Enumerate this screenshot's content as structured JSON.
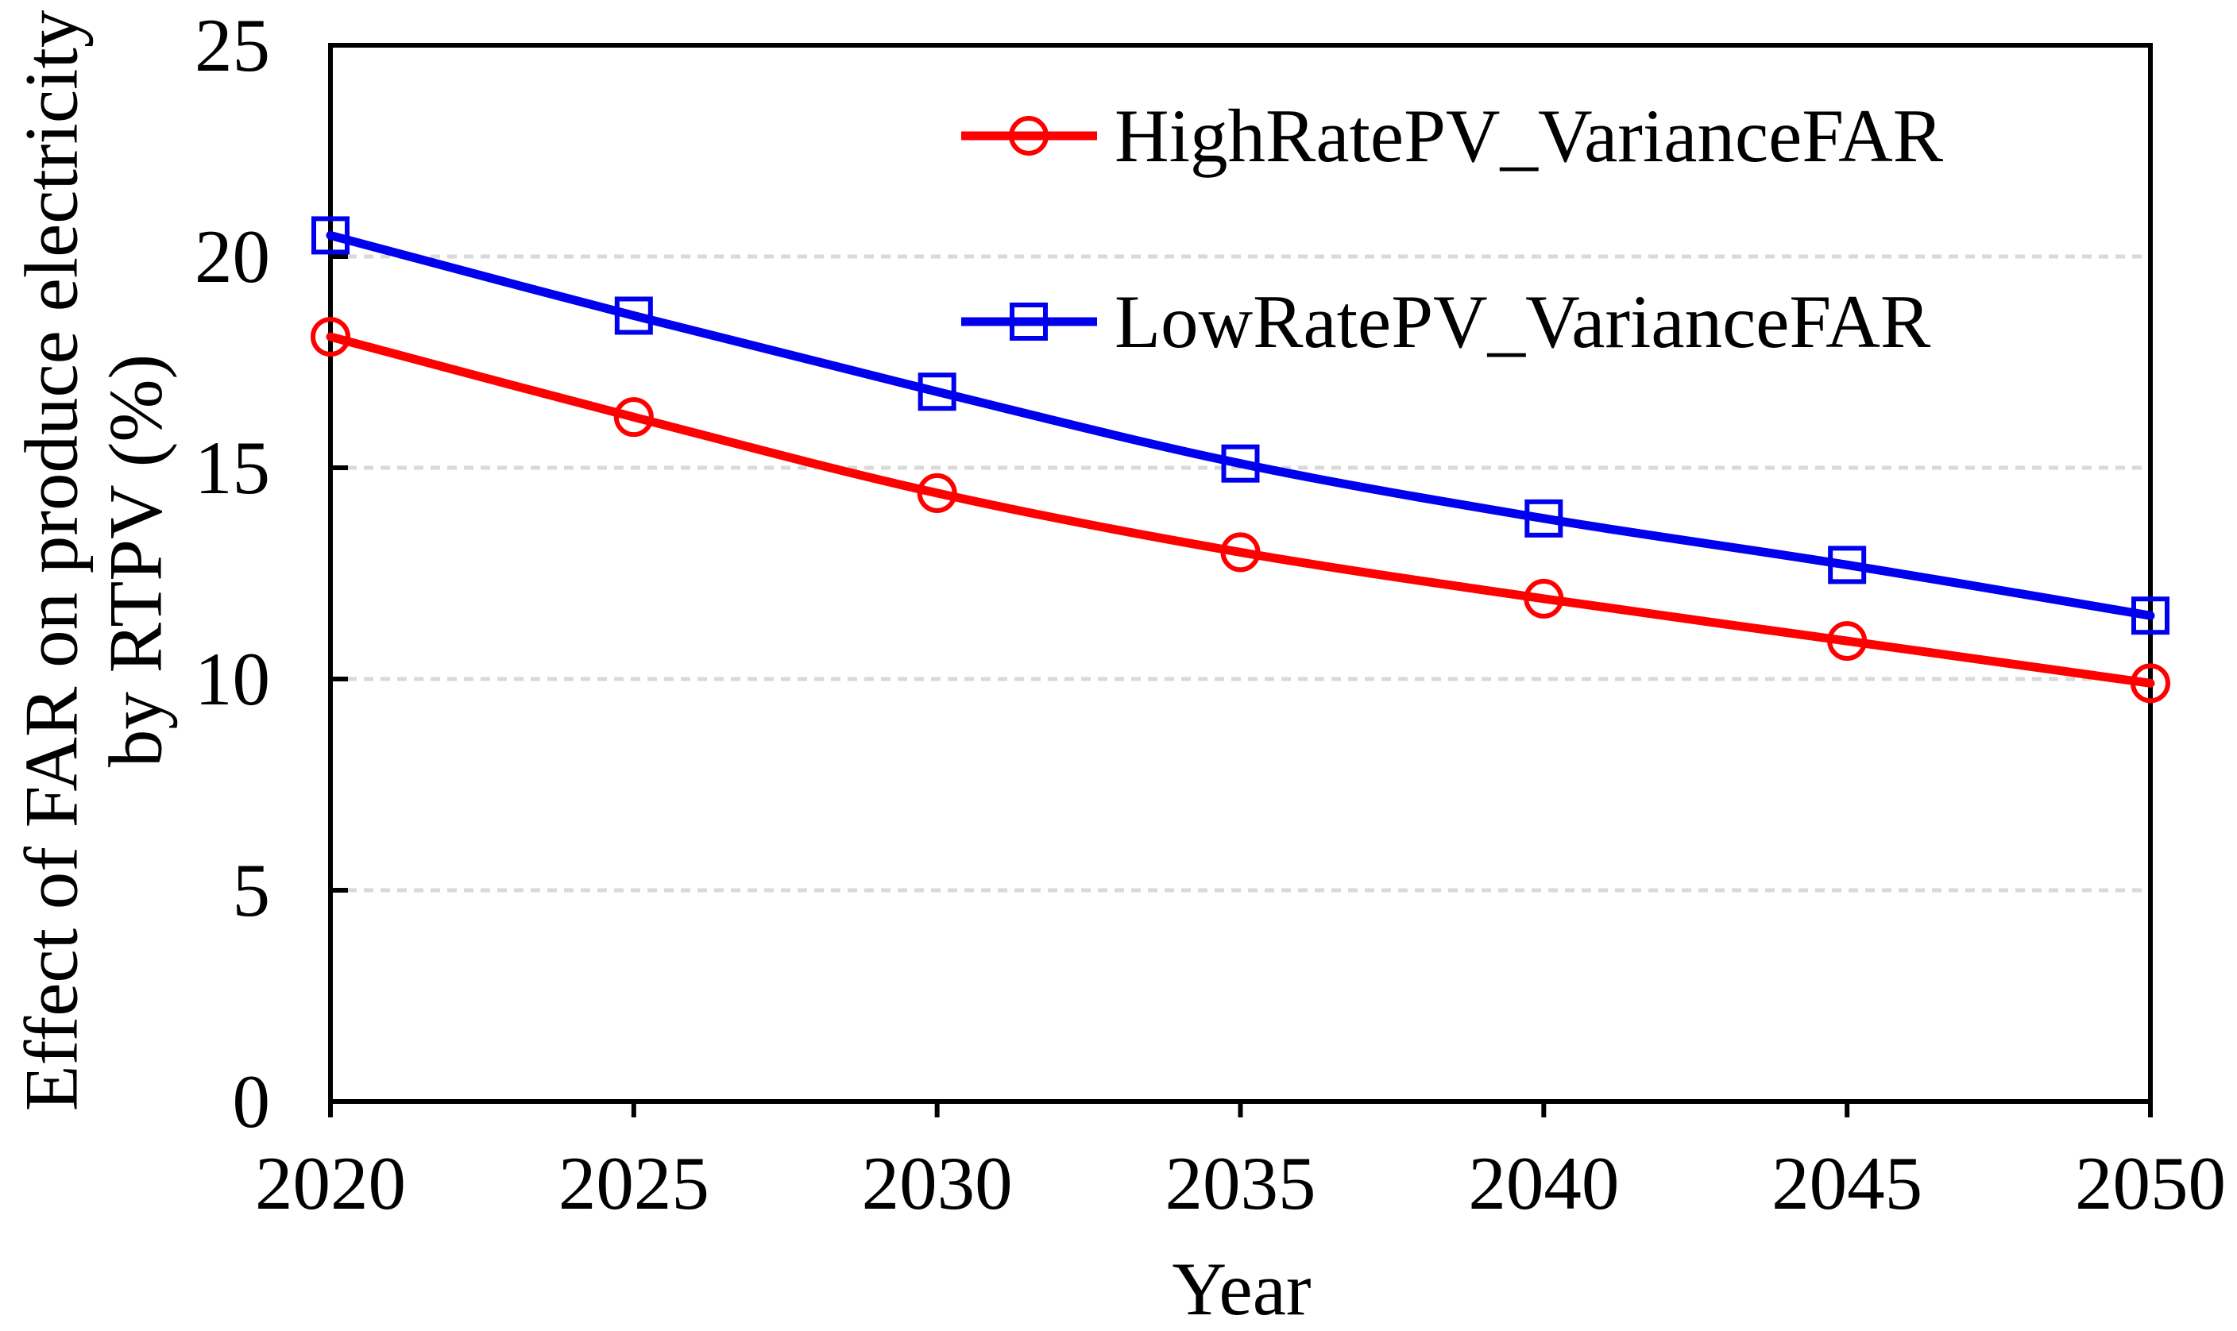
{
  "figure": {
    "background": "#ffffff",
    "axis_color": "#000000",
    "grid_color": "#D9D9D9",
    "text_color": "#000000"
  },
  "chart_data": {
    "type": "line",
    "title": "",
    "xlabel": "Year",
    "ylabel": "Effect of FAR on produce electricity by RTPV (%)",
    "ylabel_lines": [
      "Effect of FAR on produce electricity",
      "by  RTPV (%)"
    ],
    "x": [
      2020,
      2025,
      2030,
      2035,
      2040,
      2045,
      2050
    ],
    "xticks": [
      2020,
      2025,
      2030,
      2035,
      2040,
      2045,
      2050
    ],
    "yticks": [
      0,
      5,
      10,
      15,
      20,
      25
    ],
    "xlim": [
      2020,
      2050
    ],
    "ylim": [
      0,
      25
    ],
    "grid": "horizontal-dashed",
    "legend_position": "inside-top-center",
    "series": [
      {
        "name": "HighRatePV_VarianceFAR",
        "color": "#FF0000",
        "marker": "circle",
        "values": [
          18.1,
          16.2,
          14.4,
          13.0,
          11.9,
          10.9,
          9.9
        ]
      },
      {
        "name": "LowRatePV_VarianceFAR",
        "color": "#0000EE",
        "marker": "square",
        "values": [
          20.5,
          18.6,
          16.8,
          15.1,
          13.8,
          12.7,
          11.5
        ]
      }
    ]
  }
}
